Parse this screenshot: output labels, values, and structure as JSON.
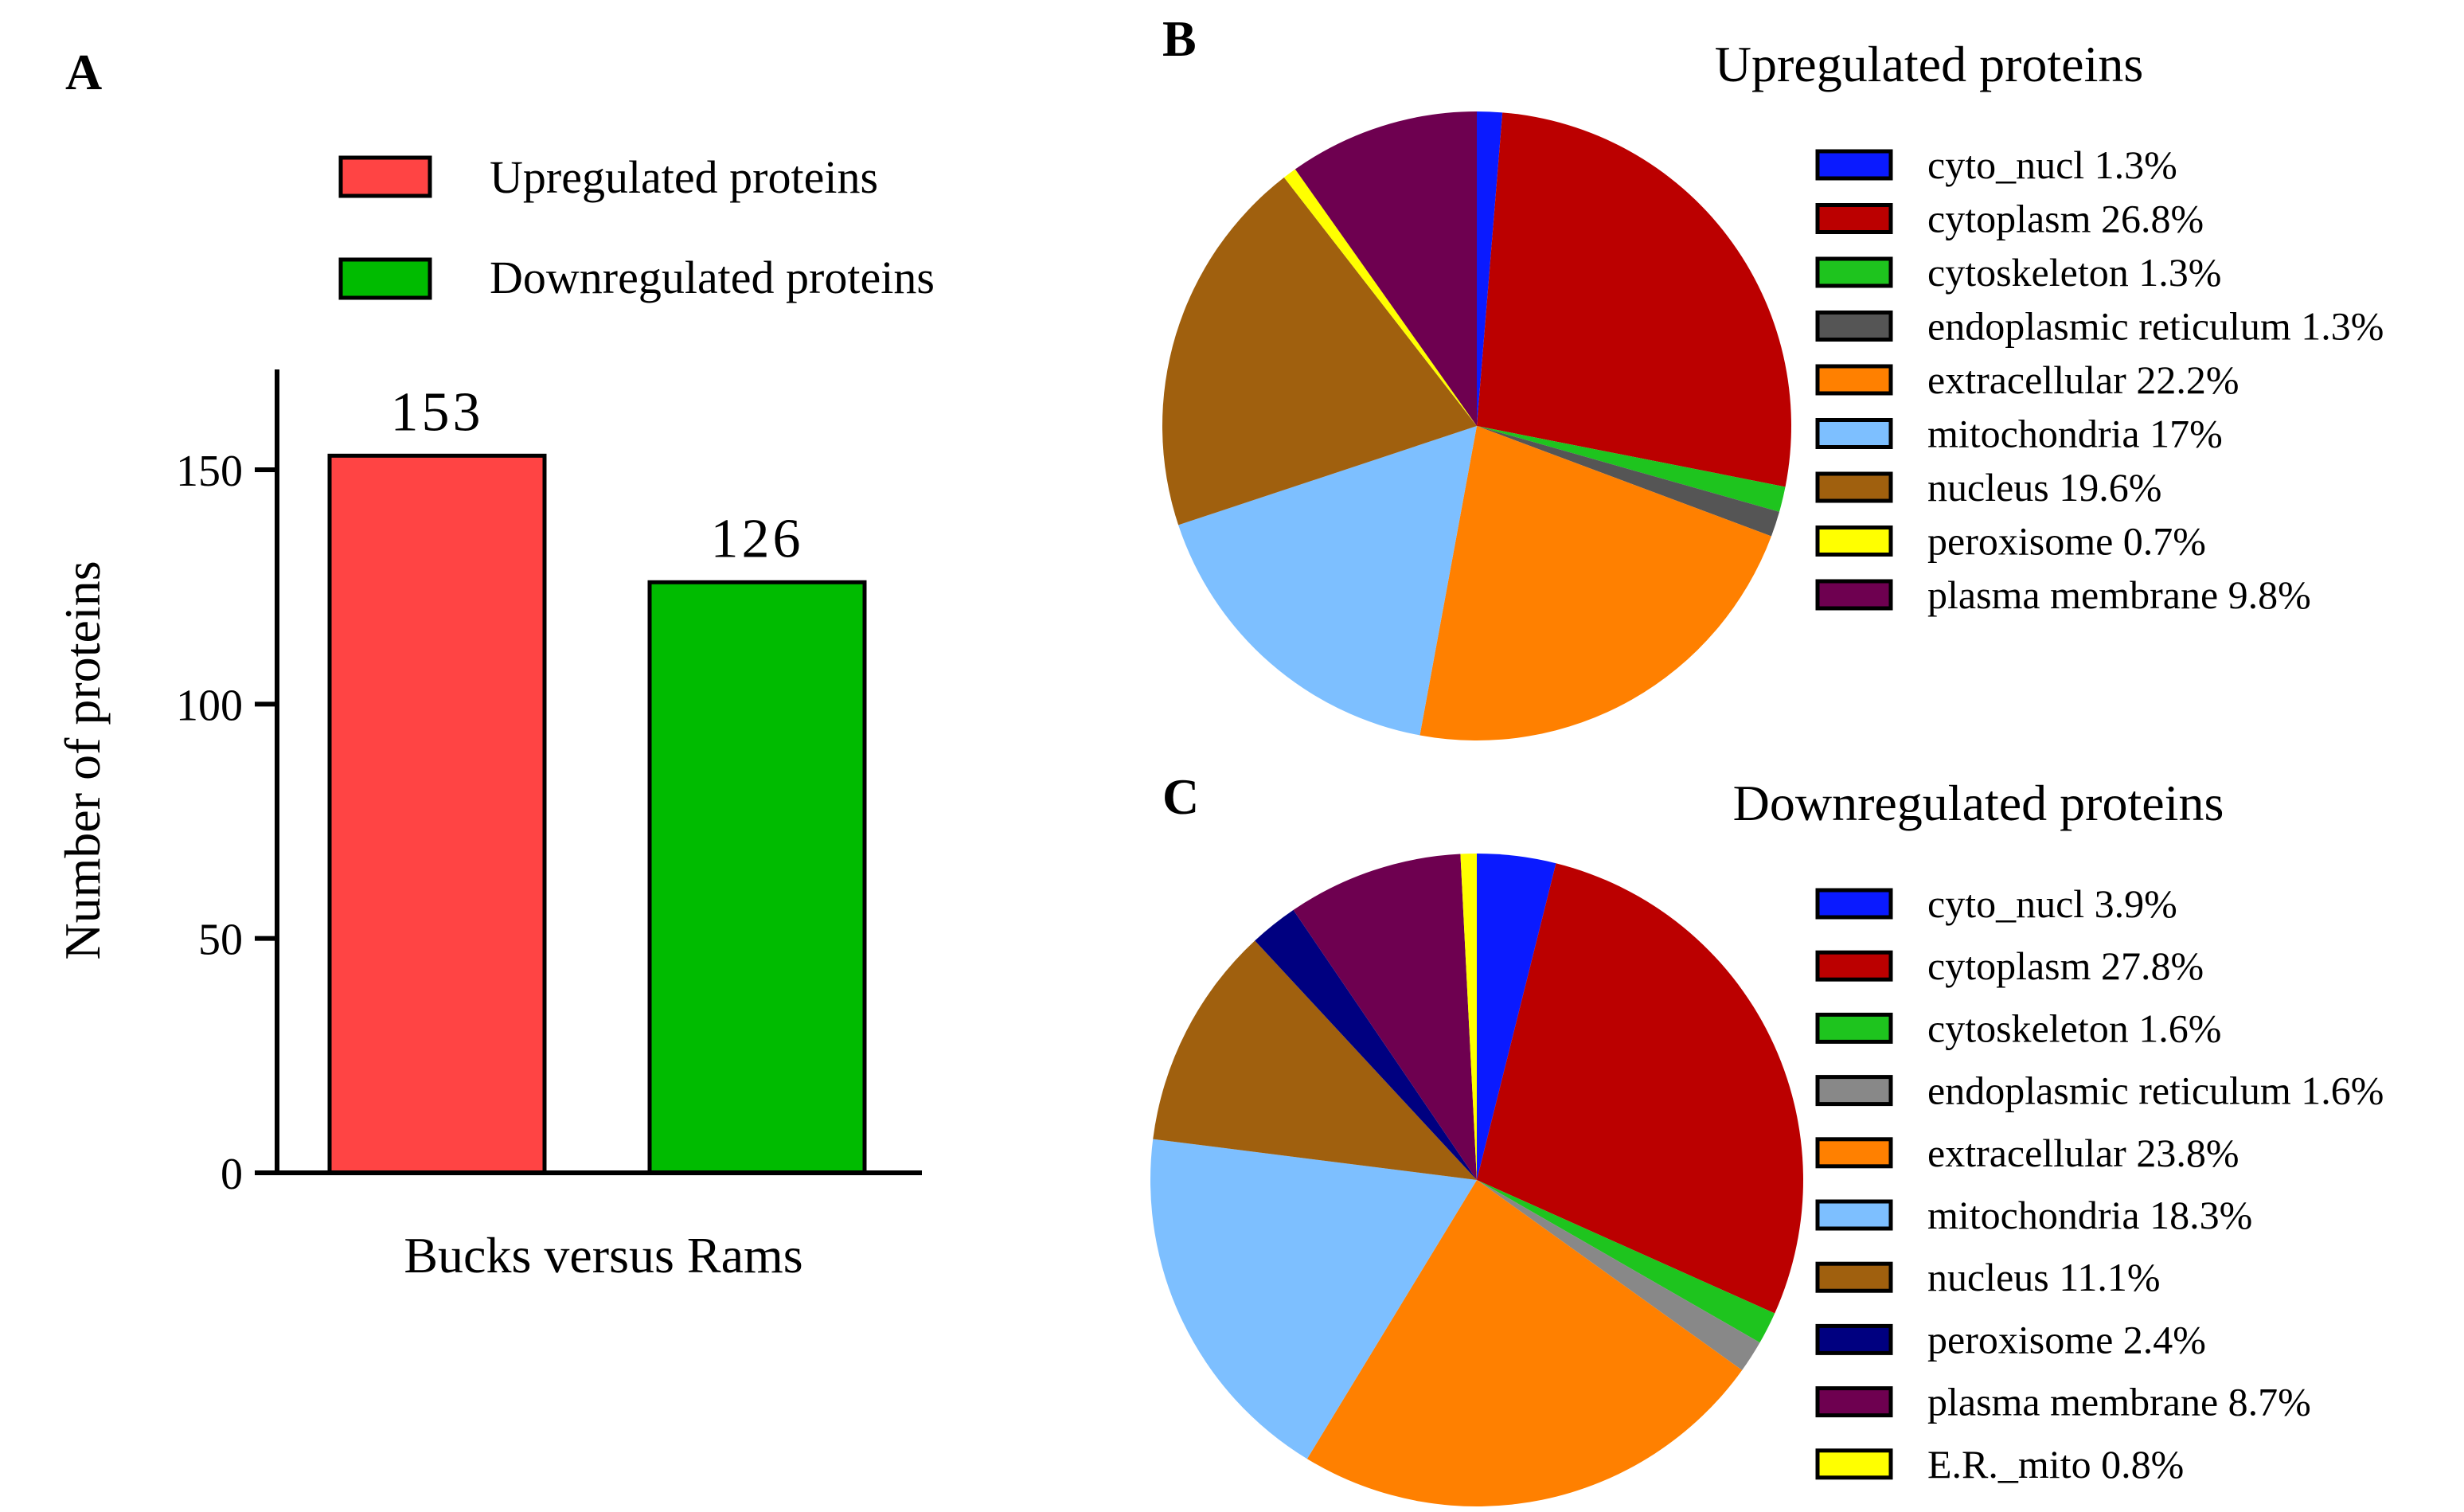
{
  "chart_data": [
    {
      "type": "bar",
      "panel_label": "A",
      "title": "",
      "categories": [
        "Upregulated proteins",
        "Downregulated proteins"
      ],
      "values": [
        153,
        126
      ],
      "data_labels": [
        "153",
        "126"
      ],
      "colors": [
        "#ff4444",
        "#00bb00"
      ],
      "xlabel": "Bucks versus Rams",
      "ylabel": "Number of proteins",
      "ylim": [
        0,
        170
      ],
      "yticks": [
        0,
        50,
        100,
        150
      ],
      "ytick_labels": [
        "0",
        "50",
        "100",
        "150"
      ],
      "legend": [
        {
          "label": "Upregulated proteins",
          "color": "#ff4444"
        },
        {
          "label": "Downregulated proteins",
          "color": "#00bb00"
        }
      ],
      "legend_position": "top"
    },
    {
      "type": "pie",
      "panel_label": "B",
      "title": "Upregulated proteins",
      "slices": [
        {
          "label": "cyto_nucl 1.3%",
          "value": 1.3,
          "color": "#0a1aff"
        },
        {
          "label": "cytoplasm 26.8%",
          "value": 26.8,
          "color": "#bb0000"
        },
        {
          "label": "cytoskeleton 1.3%",
          "value": 1.3,
          "color": "#1ec41e"
        },
        {
          "label": "endoplasmic reticulum 1.3%",
          "value": 1.3,
          "color": "#555555"
        },
        {
          "label": "extracellular 22.2%",
          "value": 22.2,
          "color": "#ff8000"
        },
        {
          "label": "mitochondria 17%",
          "value": 17,
          "color": "#7dbfff"
        },
        {
          "label": "nucleus 19.6%",
          "value": 19.6,
          "color": "#a0600e"
        },
        {
          "label": "peroxisome 0.7%",
          "value": 0.7,
          "color": "#ffff00"
        },
        {
          "label": "plasma membrane 9.8%",
          "value": 9.8,
          "color": "#6e0050"
        }
      ],
      "legend_position": "right"
    },
    {
      "type": "pie",
      "panel_label": "C",
      "title": "Downregulated proteins",
      "slices": [
        {
          "label": "cyto_nucl 3.9%",
          "value": 3.9,
          "color": "#0a1aff"
        },
        {
          "label": "cytoplasm 27.8%",
          "value": 27.8,
          "color": "#bb0000"
        },
        {
          "label": "cytoskeleton 1.6%",
          "value": 1.6,
          "color": "#1ec41e"
        },
        {
          "label": "endoplasmic reticulum 1.6%",
          "value": 1.6,
          "color": "#888888"
        },
        {
          "label": "extracellular 23.8%",
          "value": 23.8,
          "color": "#ff8000"
        },
        {
          "label": "mitochondria 18.3%",
          "value": 18.3,
          "color": "#7dbfff"
        },
        {
          "label": "nucleus 11.1%",
          "value": 11.1,
          "color": "#a0600e"
        },
        {
          "label": "peroxisome 2.4%",
          "value": 2.4,
          "color": "#000080"
        },
        {
          "label": "plasma membrane 8.7%",
          "value": 8.7,
          "color": "#6e0050"
        },
        {
          "label": "E.R._mito 0.8%",
          "value": 0.8,
          "color": "#ffff00"
        }
      ],
      "legend_position": "right"
    }
  ]
}
